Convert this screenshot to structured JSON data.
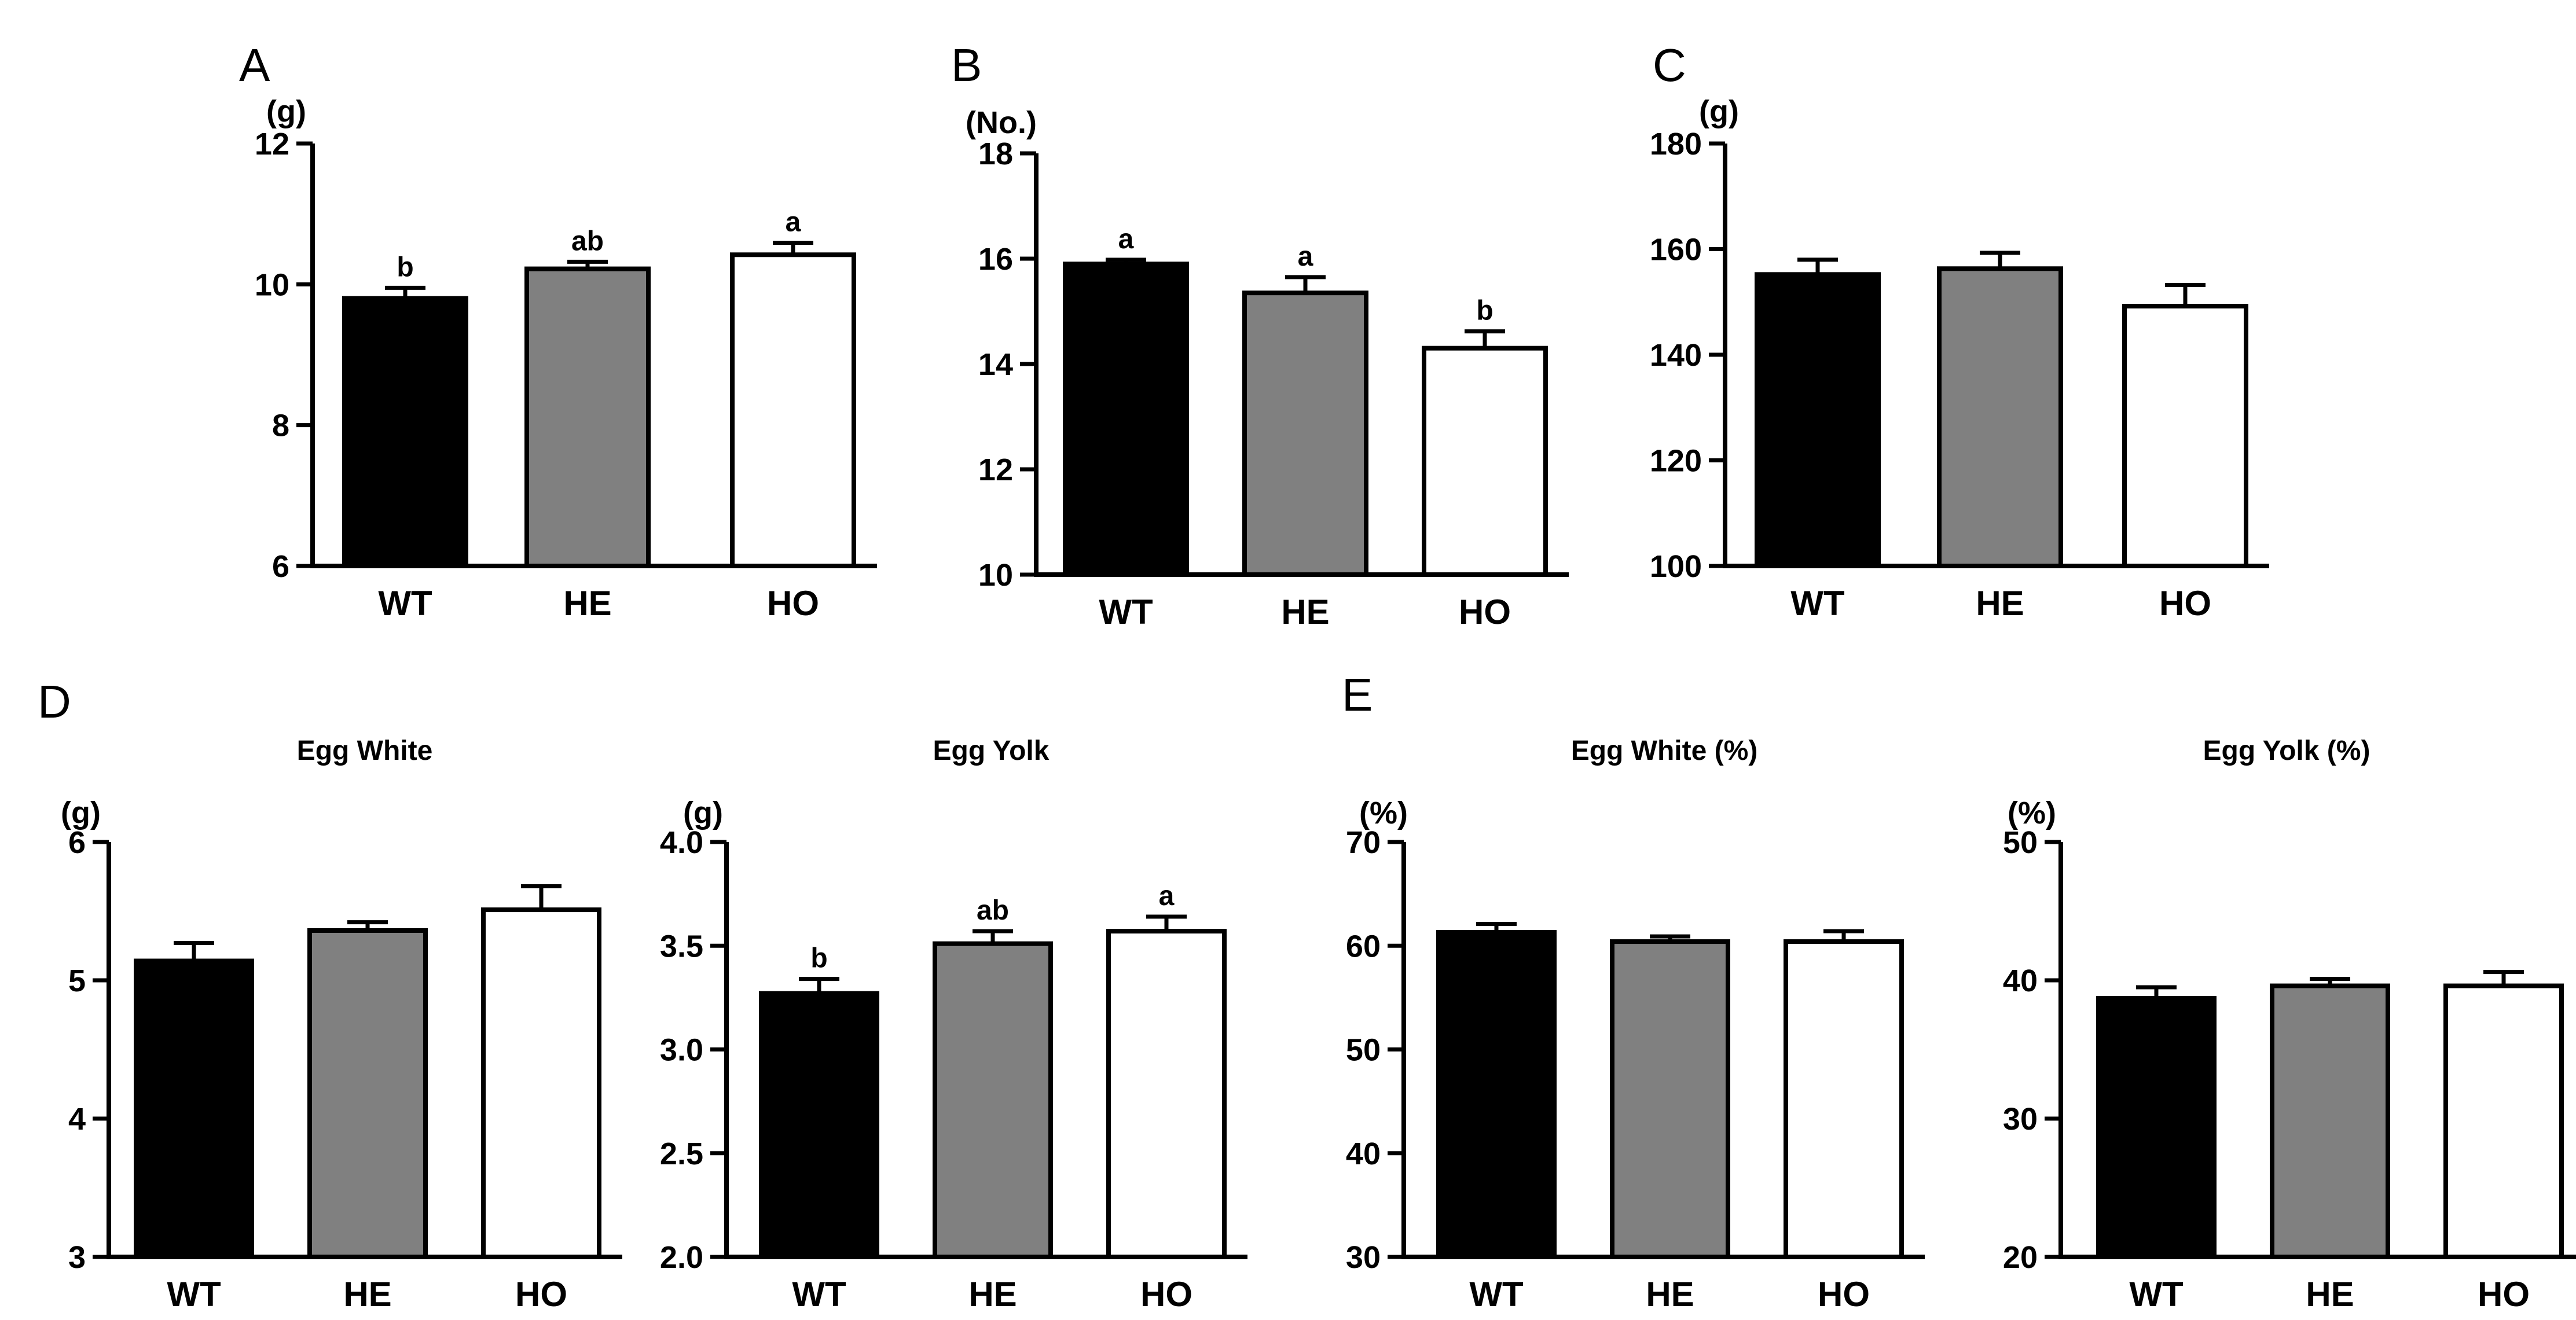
{
  "figure": {
    "panels": [
      {
        "letter": "A",
        "unit": "(g)",
        "title": "",
        "ylim": [
          6,
          12
        ],
        "ticks": [
          "6",
          "8",
          "10",
          "12"
        ]
      },
      {
        "letter": "B",
        "unit": "(No.)",
        "title": "",
        "ylim": [
          10,
          18
        ],
        "ticks": [
          "10",
          "12",
          "14",
          "16",
          "18"
        ]
      },
      {
        "letter": "C",
        "unit": "(g)",
        "title": "",
        "ylim": [
          100,
          180
        ],
        "ticks": [
          "100",
          "120",
          "140",
          "160",
          "180"
        ]
      },
      {
        "letter": "D",
        "unit": "(g)",
        "title": "Egg White",
        "ylim": [
          3,
          6
        ],
        "ticks": [
          "3",
          "4",
          "5",
          "6"
        ]
      },
      {
        "letter": "",
        "unit": "(g)",
        "title": "Egg Yolk",
        "ylim": [
          2.0,
          4.0
        ],
        "ticks": [
          "2.0",
          "2.5",
          "3.0",
          "3.5",
          "4.0"
        ]
      },
      {
        "letter": "E",
        "unit": "(%)",
        "title": "Egg White (%)",
        "ylim": [
          30,
          70
        ],
        "ticks": [
          "30",
          "40",
          "50",
          "60",
          "70"
        ]
      },
      {
        "letter": "",
        "unit": "(%)",
        "title": "Egg Yolk (%)",
        "ylim": [
          20,
          50
        ],
        "ticks": [
          "20",
          "30",
          "40",
          "50"
        ]
      }
    ]
  },
  "chart_data": [
    {
      "type": "bar",
      "panel": "A",
      "title": "",
      "ylabel": "(g)",
      "ylim": [
        6,
        12
      ],
      "categories": [
        "WT",
        "HE",
        "HO"
      ],
      "values": [
        9.8,
        10.22,
        10.42
      ],
      "errors": [
        0.15,
        0.1,
        0.17
      ],
      "letters": [
        "b",
        "ab",
        "a"
      ],
      "colors": [
        "#000000",
        "#808080",
        "#ffffff"
      ]
    },
    {
      "type": "bar",
      "panel": "B",
      "title": "",
      "ylabel": "(No.)",
      "ylim": [
        10,
        18
      ],
      "categories": [
        "WT",
        "HE",
        "HO"
      ],
      "values": [
        15.9,
        15.35,
        14.3
      ],
      "errors": [
        0.08,
        0.3,
        0.32
      ],
      "letters": [
        "a",
        "a",
        "b"
      ],
      "colors": [
        "#000000",
        "#808080",
        "#ffffff"
      ]
    },
    {
      "type": "bar",
      "panel": "C",
      "title": "",
      "ylabel": "(g)",
      "ylim": [
        100,
        180
      ],
      "categories": [
        "WT",
        "HE",
        "HO"
      ],
      "values": [
        155.2,
        156.3,
        149.2
      ],
      "errors": [
        2.8,
        3.0,
        4.0
      ],
      "letters": [
        "",
        "",
        ""
      ],
      "colors": [
        "#000000",
        "#808080",
        "#ffffff"
      ]
    },
    {
      "type": "bar",
      "panel": "D",
      "title": "Egg White",
      "ylabel": "(g)",
      "ylim": [
        3,
        6
      ],
      "categories": [
        "WT",
        "HE",
        "HO"
      ],
      "values": [
        5.14,
        5.36,
        5.51
      ],
      "errors": [
        0.13,
        0.06,
        0.17
      ],
      "letters": [
        "",
        "",
        ""
      ],
      "colors": [
        "#000000",
        "#808080",
        "#ffffff"
      ]
    },
    {
      "type": "bar",
      "panel": "D",
      "title": "Egg Yolk",
      "ylabel": "(g)",
      "ylim": [
        2.0,
        4.0
      ],
      "categories": [
        "WT",
        "HE",
        "HO"
      ],
      "values": [
        3.27,
        3.51,
        3.57
      ],
      "errors": [
        0.07,
        0.06,
        0.07
      ],
      "letters": [
        "b",
        "ab",
        "a"
      ],
      "colors": [
        "#000000",
        "#808080",
        "#ffffff"
      ]
    },
    {
      "type": "bar",
      "panel": "E",
      "title": "Egg White (%)",
      "ylabel": "(%)",
      "ylim": [
        30,
        70
      ],
      "categories": [
        "WT",
        "HE",
        "HO"
      ],
      "values": [
        61.3,
        60.4,
        60.4
      ],
      "errors": [
        0.8,
        0.5,
        1.0
      ],
      "letters": [
        "",
        "",
        ""
      ],
      "colors": [
        "#000000",
        "#808080",
        "#ffffff"
      ]
    },
    {
      "type": "bar",
      "panel": "E",
      "title": "Egg Yolk (%)",
      "ylabel": "(%)",
      "ylim": [
        20,
        50
      ],
      "categories": [
        "WT",
        "HE",
        "HO"
      ],
      "values": [
        38.7,
        39.6,
        39.6
      ],
      "errors": [
        0.8,
        0.5,
        1.0
      ],
      "letters": [
        "",
        "",
        ""
      ],
      "colors": [
        "#000000",
        "#808080",
        "#ffffff"
      ]
    }
  ]
}
